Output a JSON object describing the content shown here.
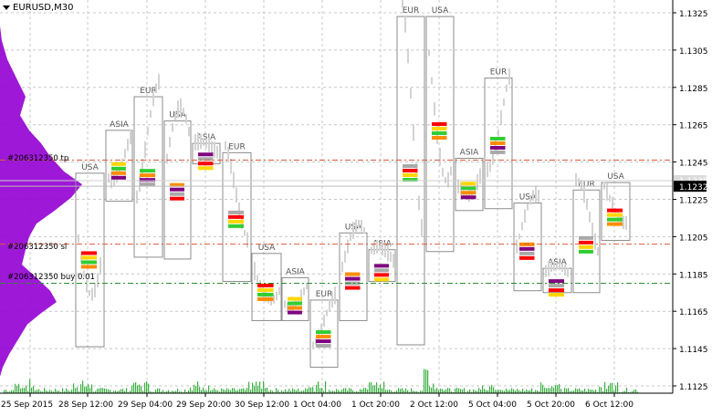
{
  "window": {
    "symbol_timeframe": "EURUSD,M30"
  },
  "colors": {
    "background": "#ffffff",
    "grid": "#c8c8c8",
    "box": "#8c8c8c",
    "profile": "#9400d3",
    "volume": "#3cb043",
    "tp_line": "#e05a3a",
    "sl_line": "#e05a3a",
    "buy_line": "#2e8b2e",
    "current_price": "#000000",
    "candle": "#d3d3d3"
  },
  "order_labels": {
    "tp": "#206312350 tp",
    "sl": "#206312350 sl",
    "buy": "#206312350 buy 0.01"
  },
  "price_axis": {
    "ticks": [
      "1.1325",
      "1.1305",
      "1.1285",
      "1.1265",
      "1.1245",
      "1.1225",
      "1.1205",
      "1.1185",
      "1.1165",
      "1.1145",
      "1.1125"
    ],
    "current_price": "1.1232",
    "ask_price": "1.1235"
  },
  "time_axis": {
    "labels": [
      "25 Sep 2015",
      "28 Sep 12:00",
      "29 Sep 04:00",
      "29 Sep 20:00",
      "30 Sep 12:00",
      "1 Oct 04:00",
      "1 Oct 20:00",
      "2 Oct 12:00",
      "5 Oct 04:00",
      "5 Oct 20:00",
      "6 Oct 12:00"
    ]
  },
  "chart_data": {
    "type": "candlestick",
    "symbol": "EURUSD",
    "timeframe": "M30",
    "ylim": [
      1.112,
      1.1335
    ],
    "sessions": [
      {
        "label": "USA",
        "high": 1.1239,
        "low": 1.1146
      },
      {
        "label": "ASIA",
        "high": 1.1262,
        "low": 1.1224
      },
      {
        "label": "EUR",
        "high": 1.128,
        "low": 1.1194
      },
      {
        "label": "USA",
        "high": 1.1267,
        "low": 1.1193
      },
      {
        "label": "ASIA",
        "high": 1.1255,
        "low": 1.1244
      },
      {
        "label": "EUR",
        "high": 1.125,
        "low": 1.1181
      },
      {
        "label": "USA",
        "high": 1.1196,
        "low": 1.116
      },
      {
        "label": "ASIA",
        "high": 1.1183,
        "low": 1.116
      },
      {
        "label": "EUR",
        "high": 1.1171,
        "low": 1.1135
      },
      {
        "label": "USA",
        "high": 1.1207,
        "low": 1.116
      },
      {
        "label": "ASIA",
        "high": 1.1198,
        "low": 1.1181
      },
      {
        "label": "EUR",
        "high": 1.1323,
        "low": 1.1147
      },
      {
        "label": "USA",
        "high": 1.1323,
        "low": 1.1197
      },
      {
        "label": "ASIA",
        "high": 1.1247,
        "low": 1.1219
      },
      {
        "label": "EUR",
        "high": 1.129,
        "low": 1.122
      },
      {
        "label": "USA",
        "high": 1.1223,
        "low": 1.1176
      },
      {
        "label": "ASIA",
        "high": 1.1188,
        "low": 1.1175
      },
      {
        "label": "EUR",
        "high": 1.123,
        "low": 1.1175
      },
      {
        "label": "USA",
        "high": 1.1234,
        "low": 1.1203
      }
    ],
    "order_levels": {
      "tp": 1.1246,
      "sl": 1.1201,
      "buy": 1.118
    },
    "current_price": 1.1232,
    "ask_price": 1.1235
  }
}
